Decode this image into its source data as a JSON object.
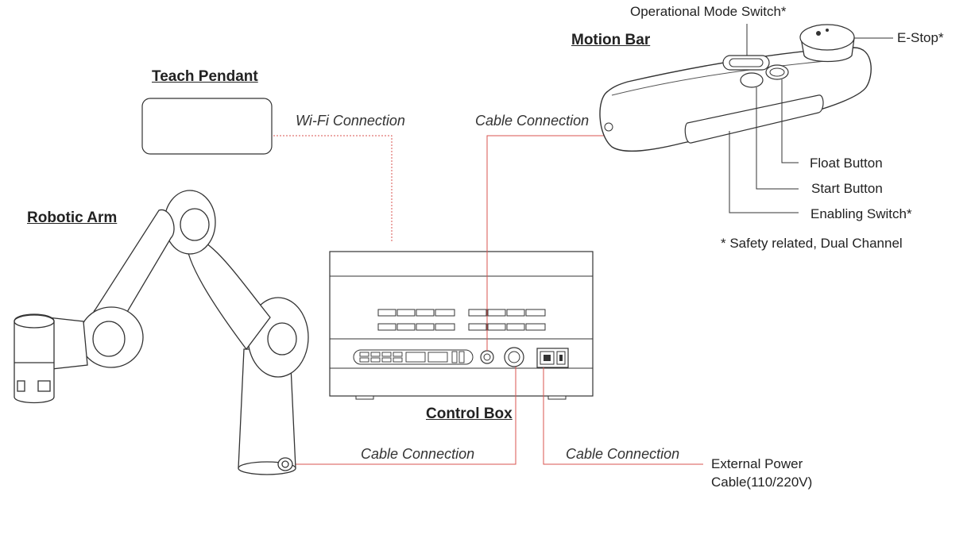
{
  "titles": {
    "teach_pendant": "Teach Pendant",
    "robotic_arm": "Robotic Arm",
    "control_box": "Control Box",
    "motion_bar": "Motion Bar"
  },
  "connections": {
    "wifi": "Wi-Fi Connection",
    "cable_motion_bar": "Cable Connection",
    "cable_arm": "Cable Connection",
    "cable_power": "Cable Connection"
  },
  "motion_bar_callouts": {
    "operational_mode_switch": "Operational Mode Switch*",
    "e_stop": "E-Stop*",
    "float_button": "Float Button",
    "start_button": "Start Button",
    "enabling_switch": "Enabling Switch*",
    "safety_note": "* Safety related, Dual Channel"
  },
  "power": {
    "line1": "External Power",
    "line2": "Cable(110/220V)"
  },
  "colors": {
    "connection_line": "#d9534f",
    "outline": "#333333"
  }
}
